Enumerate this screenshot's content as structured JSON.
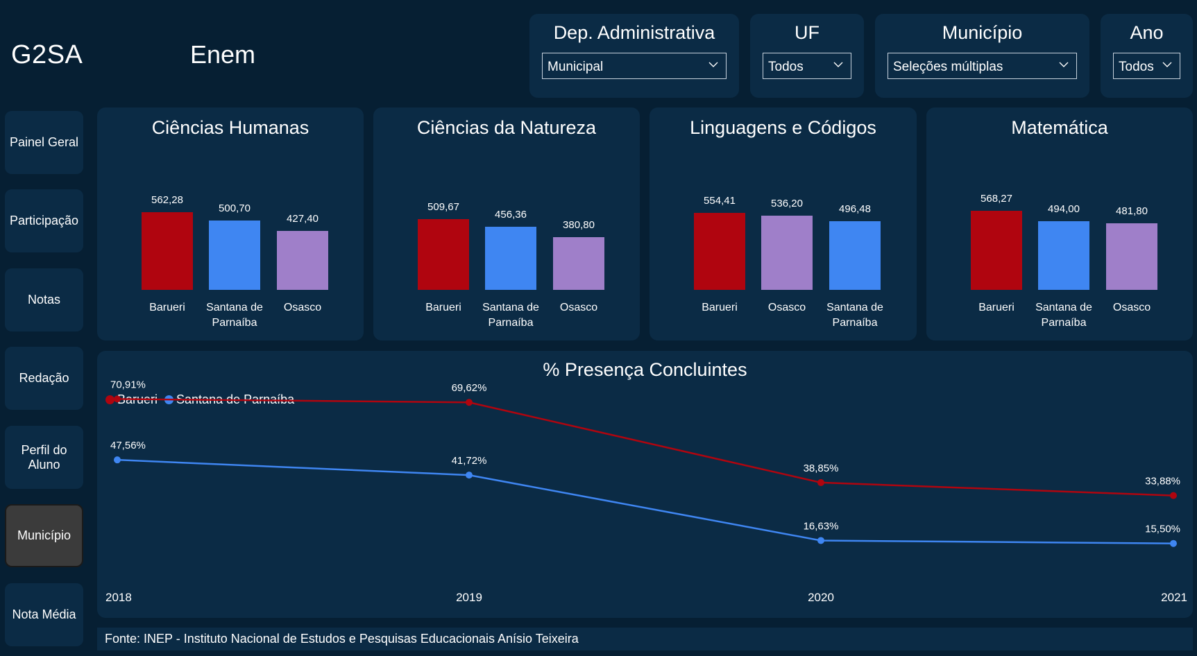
{
  "header": {
    "brand": "G2SA",
    "title": "Enem"
  },
  "filters": [
    {
      "label": "Dep. Administrativa",
      "value": "Municipal"
    },
    {
      "label": "UF",
      "value": "Todos"
    },
    {
      "label": "Município",
      "value": "Seleções múltiplas"
    },
    {
      "label": "Ano",
      "value": "Todos"
    }
  ],
  "nav": [
    {
      "label": "Painel Geral"
    },
    {
      "label": "Participação"
    },
    {
      "label": "Notas"
    },
    {
      "label": "Redação"
    },
    {
      "label": "Perfil do Aluno"
    },
    {
      "label": "Município",
      "active": true
    },
    {
      "label": "Nota Média"
    }
  ],
  "colors": {
    "barueri": "#b0050f",
    "santana": "#3f86f2",
    "osasco": "#9f7fc9",
    "card": "#0b2b45",
    "background": "#061f33"
  },
  "chart_data": [
    {
      "type": "bar",
      "title": "Ciências Humanas",
      "categories": [
        "Barueri",
        "Santana de Parnaíba",
        "Osasco"
      ],
      "values": [
        562.28,
        500.7,
        427.4
      ],
      "labels": [
        "562,28",
        "500,70",
        "427,40"
      ],
      "colors": [
        "#b0050f",
        "#3f86f2",
        "#9f7fc9"
      ]
    },
    {
      "type": "bar",
      "title": "Ciências da Natureza",
      "categories": [
        "Barueri",
        "Santana de Parnaíba",
        "Osasco"
      ],
      "values": [
        509.67,
        456.36,
        380.8
      ],
      "labels": [
        "509,67",
        "456,36",
        "380,80"
      ],
      "colors": [
        "#b0050f",
        "#3f86f2",
        "#9f7fc9"
      ]
    },
    {
      "type": "bar",
      "title": "Linguagens e Códigos",
      "categories": [
        "Barueri",
        "Osasco",
        "Santana de Parnaíba"
      ],
      "values": [
        554.41,
        536.2,
        496.48
      ],
      "labels": [
        "554,41",
        "536,20",
        "496,48"
      ],
      "colors": [
        "#b0050f",
        "#9f7fc9",
        "#3f86f2"
      ]
    },
    {
      "type": "bar",
      "title": "Matemática",
      "categories": [
        "Barueri",
        "Santana de Parnaíba",
        "Osasco"
      ],
      "values": [
        568.27,
        494.0,
        481.8
      ],
      "labels": [
        "568,27",
        "494,00",
        "481,80"
      ],
      "colors": [
        "#b0050f",
        "#3f86f2",
        "#9f7fc9"
      ]
    },
    {
      "type": "line",
      "title": "% Presença Concluintes",
      "x": [
        "2018",
        "2019",
        "2020",
        "2021"
      ],
      "legend_position": "top-left",
      "series": [
        {
          "name": "Barueri",
          "color": "#b0050f",
          "values": [
            70.91,
            69.62,
            38.85,
            33.88
          ],
          "labels": [
            "70,91%",
            "69,62%",
            "38,85%",
            "33,88%"
          ]
        },
        {
          "name": "Santana de Parnaíba",
          "color": "#3f86f2",
          "values": [
            47.56,
            41.72,
            16.63,
            15.5
          ],
          "labels": [
            "47,56%",
            "41,72%",
            "16,63%",
            "15,50%"
          ]
        }
      ]
    }
  ],
  "footer": {
    "source": "Fonte: INEP - Instituto Nacional de Estudos e Pesquisas Educacionais Anísio Teixeira"
  }
}
